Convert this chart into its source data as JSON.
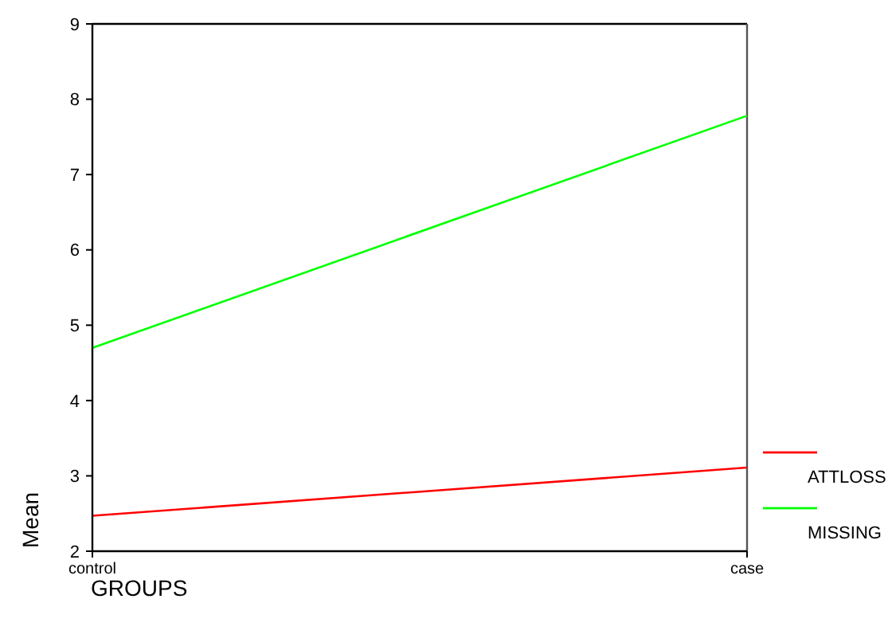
{
  "chart_data": {
    "type": "line",
    "xlabel": "GROUPS",
    "ylabel": "Mean",
    "categories": [
      "control",
      "case"
    ],
    "ylim": [
      2,
      9
    ],
    "yticks": [
      2,
      3,
      4,
      5,
      6,
      7,
      8,
      9
    ],
    "legend": "bottom right",
    "series": [
      {
        "name": "ATTLOSS",
        "color": "#ff0000",
        "values": [
          2.47,
          3.11
        ]
      },
      {
        "name": "MISSING",
        "color": "#00ff00",
        "values": [
          4.7,
          7.78
        ]
      }
    ]
  }
}
